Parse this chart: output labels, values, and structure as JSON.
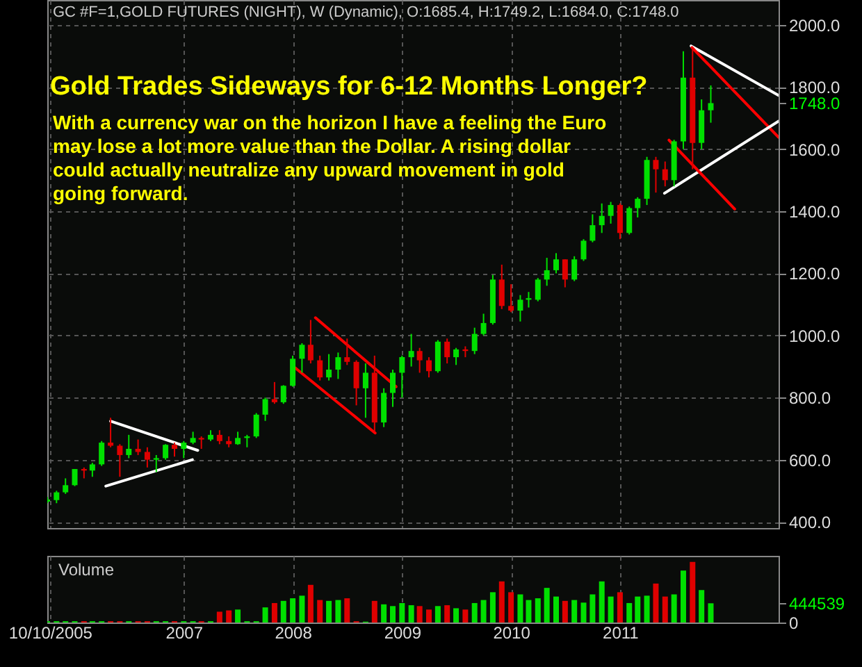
{
  "chart_data": [
    {
      "type": "candlestick",
      "title": "Gold Trades Sideways for 6-12 Months Longer?",
      "subtitle": "With a currency war on the horizon I have a feeling the Euro may lose a lot more value than the Dollar. A rising dollar could actually neutralize any upward movement in gold going forward.",
      "annotations": [
        "GC #F=1,GOLD FUTURES (NIGHT), W (Dynamic), O:1685.4, H:1749.2, L:1684.0, C:1748.0"
      ],
      "x": [
        "2005-10",
        "2005-11",
        "2005-12",
        "2006-01",
        "2006-02",
        "2006-03",
        "2006-04",
        "2006-05",
        "2006-06",
        "2006-07",
        "2006-08",
        "2006-09",
        "2006-10",
        "2006-11",
        "2006-12",
        "2007-01",
        "2007-02",
        "2007-03",
        "2007-04",
        "2007-05",
        "2007-06",
        "2007-07",
        "2007-08",
        "2007-09",
        "2007-10",
        "2007-11",
        "2007-12",
        "2008-01",
        "2008-02",
        "2008-03",
        "2008-04",
        "2008-05",
        "2008-06",
        "2008-07",
        "2008-08",
        "2008-09",
        "2008-10",
        "2008-11",
        "2008-12",
        "2009-01",
        "2009-02",
        "2009-03",
        "2009-04",
        "2009-05",
        "2009-06",
        "2009-07",
        "2009-08",
        "2009-09",
        "2009-10",
        "2009-11",
        "2009-12",
        "2010-01",
        "2010-02",
        "2010-03",
        "2010-04",
        "2010-05",
        "2010-06",
        "2010-07",
        "2010-08",
        "2010-09",
        "2010-10",
        "2010-11",
        "2010-12",
        "2011-01",
        "2011-02",
        "2011-03",
        "2011-04",
        "2011-05",
        "2011-06",
        "2011-07",
        "2011-08",
        "2011-09",
        "2011-10",
        "2011-11"
      ],
      "ohlc": [
        [
          465,
          480,
          460,
          472
        ],
        [
          470,
          500,
          460,
          495
        ],
        [
          495,
          540,
          490,
          518
        ],
        [
          518,
          570,
          515,
          570
        ],
        [
          570,
          575,
          540,
          565
        ],
        [
          565,
          590,
          545,
          585
        ],
        [
          585,
          660,
          580,
          655
        ],
        [
          655,
          735,
          640,
          645
        ],
        [
          645,
          650,
          545,
          615
        ],
        [
          615,
          680,
          605,
          635
        ],
        [
          635,
          665,
          615,
          625
        ],
        [
          625,
          640,
          575,
          600
        ],
        [
          600,
          615,
          560,
          605
        ],
        [
          605,
          650,
          600,
          648
        ],
        [
          648,
          655,
          610,
          635
        ],
        [
          635,
          660,
          605,
          655
        ],
        [
          655,
          690,
          650,
          670
        ],
        [
          670,
          675,
          635,
          665
        ],
        [
          665,
          695,
          660,
          680
        ],
        [
          680,
          695,
          650,
          660
        ],
        [
          660,
          675,
          640,
          650
        ],
        [
          650,
          690,
          648,
          670
        ],
        [
          670,
          680,
          640,
          675
        ],
        [
          675,
          750,
          670,
          745
        ],
        [
          745,
          800,
          725,
          795
        ],
        [
          795,
          850,
          780,
          785
        ],
        [
          785,
          840,
          780,
          838
        ],
        [
          838,
          935,
          835,
          925
        ],
        [
          925,
          975,
          880,
          970
        ],
        [
          970,
          1050,
          910,
          920
        ],
        [
          920,
          935,
          855,
          865
        ],
        [
          865,
          940,
          855,
          890
        ],
        [
          890,
          945,
          860,
          930
        ],
        [
          930,
          990,
          905,
          915
        ],
        [
          915,
          920,
          775,
          830
        ],
        [
          830,
          910,
          735,
          880
        ],
        [
          880,
          935,
          690,
          720
        ],
        [
          720,
          830,
          705,
          815
        ],
        [
          815,
          890,
          770,
          880
        ],
        [
          880,
          935,
          800,
          930
        ],
        [
          930,
          1005,
          900,
          950
        ],
        [
          950,
          960,
          880,
          920
        ],
        [
          920,
          930,
          865,
          885
        ],
        [
          885,
          985,
          880,
          980
        ],
        [
          980,
          990,
          910,
          930
        ],
        [
          930,
          960,
          905,
          955
        ],
        [
          955,
          965,
          930,
          950
        ],
        [
          950,
          1025,
          940,
          1005
        ],
        [
          1005,
          1070,
          1000,
          1040
        ],
        [
          1040,
          1195,
          1035,
          1180
        ],
        [
          1180,
          1228,
          1085,
          1095
        ],
        [
          1095,
          1165,
          1075,
          1080
        ],
        [
          1080,
          1130,
          1045,
          1115
        ],
        [
          1115,
          1140,
          1090,
          1120
        ],
        [
          1115,
          1185,
          1110,
          1180
        ],
        [
          1180,
          1250,
          1160,
          1210
        ],
        [
          1210,
          1265,
          1200,
          1245
        ],
        [
          1245,
          1245,
          1155,
          1180
        ],
        [
          1180,
          1255,
          1175,
          1245
        ],
        [
          1245,
          1310,
          1240,
          1305
        ],
        [
          1305,
          1390,
          1300,
          1355
        ],
        [
          1355,
          1425,
          1330,
          1385
        ],
        [
          1385,
          1430,
          1360,
          1420
        ],
        [
          1420,
          1425,
          1310,
          1330
        ],
        [
          1330,
          1415,
          1325,
          1410
        ],
        [
          1410,
          1445,
          1380,
          1440
        ],
        [
          1440,
          1575,
          1420,
          1565
        ],
        [
          1565,
          1575,
          1460,
          1535
        ],
        [
          1535,
          1560,
          1480,
          1500
        ],
        [
          1500,
          1630,
          1480,
          1625
        ],
        [
          1625,
          1915,
          1600,
          1830
        ],
        [
          1830,
          1925,
          1535,
          1620
        ],
        [
          1620,
          1760,
          1600,
          1725
        ],
        [
          1725,
          1805,
          1685,
          1748
        ]
      ],
      "colors": [
        "#00e000",
        "#00e000",
        "#00e000",
        "#00e000",
        "#e00000",
        "#00e000",
        "#00e000",
        "#e00000",
        "#e00000",
        "#00e000",
        "#e00000",
        "#e00000",
        "#00e000",
        "#00e000",
        "#e00000",
        "#00e000",
        "#00e000",
        "#e00000",
        "#00e000",
        "#e00000",
        "#e00000",
        "#00e000",
        "#00e000",
        "#00e000",
        "#00e000",
        "#e00000",
        "#00e000",
        "#00e000",
        "#00e000",
        "#e00000",
        "#e00000",
        "#00e000",
        "#00e000",
        "#e00000",
        "#e00000",
        "#00e000",
        "#e00000",
        "#00e000",
        "#00e000",
        "#00e000",
        "#00e000",
        "#e00000",
        "#e00000",
        "#00e000",
        "#e00000",
        "#00e000",
        "#e00000",
        "#00e000",
        "#00e000",
        "#00e000",
        "#e00000",
        "#e00000",
        "#00e000",
        "#00e000",
        "#00e000",
        "#00e000",
        "#00e000",
        "#e00000",
        "#00e000",
        "#00e000",
        "#00e000",
        "#00e000",
        "#00e000",
        "#e00000",
        "#00e000",
        "#00e000",
        "#00e000",
        "#e00000",
        "#e00000",
        "#00e000",
        "#00e000",
        "#e00000",
        "#00e000",
        "#00e000"
      ],
      "series": [
        {
          "type": "line",
          "color": "#ffffff",
          "x": [
            "2006-05-01",
            "2007-02-17"
          ],
          "values": [
            724,
            630
          ]
        },
        {
          "type": "line",
          "color": "#ffffff",
          "x": [
            "2006-04-15",
            "2007-01-30"
          ],
          "values": [
            515,
            600
          ]
        },
        {
          "type": "line",
          "color": "#ff0000",
          "x": [
            "2008-03-17",
            "2008-12-12"
          ],
          "values": [
            1057,
            835
          ]
        },
        {
          "type": "line",
          "color": "#ff0000",
          "x": [
            "2008-01-05",
            "2008-10-03"
          ],
          "values": [
            899,
            686
          ]
        },
        {
          "type": "line",
          "color": "#ffffff",
          "x": [
            "2011-08-27",
            "2012-06-15"
          ],
          "values": [
            1932,
            1773
          ]
        },
        {
          "type": "line",
          "color": "#ff0000",
          "x": [
            "2011-08-30",
            "2012-06-15"
          ],
          "values": [
            1927,
            1638
          ]
        },
        {
          "type": "line",
          "color": "#ffffff",
          "x": [
            "2011-05-30",
            "2012-06-15"
          ],
          "values": [
            1458,
            1690
          ]
        },
        {
          "type": "line",
          "color": "#ff0000",
          "x": [
            "2011-06-14",
            "2012-01-20"
          ],
          "values": [
            1629,
            1407
          ]
        }
      ],
      "xlim": [
        "2005-10-01",
        "2012-06-15"
      ],
      "xticks": [
        {
          "value": "2005-10-10",
          "label": null
        },
        {
          "value": "2007-01-01",
          "label": null
        },
        {
          "value": "2008-01-01",
          "label": null
        },
        {
          "value": "2009-01-01",
          "label": null
        },
        {
          "value": "2010-01-01",
          "label": null
        },
        {
          "value": "2011-01-01",
          "label": null
        }
      ],
      "ylim": [
        380,
        2080
      ],
      "yticks": [
        {
          "value": 400,
          "label": "400.0"
        },
        {
          "value": 600,
          "label": "600.0"
        },
        {
          "value": 800,
          "label": "800.0"
        },
        {
          "value": 1000,
          "label": "1000.0"
        },
        {
          "value": 1200,
          "label": "1200.0"
        },
        {
          "value": 1400,
          "label": "1400.0"
        },
        {
          "value": 1600,
          "label": "1600.0"
        },
        {
          "value": 1748,
          "label": "1748.0"
        },
        {
          "value": 1800,
          "label": "1800.0"
        },
        {
          "value": 2000,
          "label": "2000.0"
        }
      ],
      "grid": true,
      "tick_labels": "y"
    },
    {
      "type": "bar",
      "title": "Volume",
      "x": [
        "2005-10",
        "2005-11",
        "2005-12",
        "2006-01",
        "2006-02",
        "2006-03",
        "2006-04",
        "2006-05",
        "2006-06",
        "2006-07",
        "2006-08",
        "2006-09",
        "2006-10",
        "2006-11",
        "2006-12",
        "2007-01",
        "2007-02",
        "2007-03",
        "2007-04",
        "2007-05",
        "2007-06",
        "2007-07",
        "2007-08",
        "2007-09",
        "2007-10",
        "2007-11",
        "2007-12",
        "2008-01",
        "2008-02",
        "2008-03",
        "2008-04",
        "2008-05",
        "2008-06",
        "2008-07",
        "2008-08",
        "2008-09",
        "2008-10",
        "2008-11",
        "2008-12",
        "2009-01",
        "2009-02",
        "2009-03",
        "2009-04",
        "2009-05",
        "2009-06",
        "2009-07",
        "2009-08",
        "2009-09",
        "2009-10",
        "2009-11",
        "2009-12",
        "2010-01",
        "2010-02",
        "2010-03",
        "2010-04",
        "2010-05",
        "2010-06",
        "2010-07",
        "2010-08",
        "2010-09",
        "2010-10",
        "2010-11",
        "2010-12",
        "2011-01",
        "2011-02",
        "2011-03",
        "2011-04",
        "2011-05",
        "2011-06",
        "2011-07",
        "2011-08",
        "2011-09",
        "2011-10",
        "2011-11"
      ],
      "values": [
        30000,
        30000,
        30000,
        30000,
        30000,
        30000,
        30000,
        30000,
        30000,
        30000,
        30000,
        30000,
        30000,
        30000,
        30000,
        30000,
        30000,
        30000,
        30000,
        250000,
        280000,
        300000,
        30000,
        30000,
        350000,
        450000,
        500000,
        560000,
        620000,
        870000,
        520000,
        500000,
        520000,
        560000,
        30000,
        20000,
        500000,
        420000,
        380000,
        450000,
        400000,
        380000,
        300000,
        380000,
        400000,
        330000,
        300000,
        450000,
        520000,
        700000,
        950000,
        700000,
        650000,
        520000,
        560000,
        800000,
        600000,
        500000,
        520000,
        460000,
        650000,
        950000,
        600000,
        700000,
        450000,
        600000,
        620000,
        900000,
        600000,
        650000,
        1200000,
        1400000,
        750000,
        444539
      ],
      "colors": [
        "#00e000",
        "#00e000",
        "#00e000",
        "#00e000",
        "#e00000",
        "#00e000",
        "#00e000",
        "#e00000",
        "#e00000",
        "#00e000",
        "#e00000",
        "#e00000",
        "#00e000",
        "#00e000",
        "#e00000",
        "#00e000",
        "#00e000",
        "#e00000",
        "#00e000",
        "#e00000",
        "#e00000",
        "#00e000",
        "#00e000",
        "#00e000",
        "#00e000",
        "#e00000",
        "#00e000",
        "#00e000",
        "#00e000",
        "#e00000",
        "#e00000",
        "#00e000",
        "#00e000",
        "#e00000",
        "#e00000",
        "#00e000",
        "#e00000",
        "#00e000",
        "#00e000",
        "#00e000",
        "#00e000",
        "#e00000",
        "#e00000",
        "#00e000",
        "#e00000",
        "#00e000",
        "#e00000",
        "#00e000",
        "#00e000",
        "#00e000",
        "#e00000",
        "#e00000",
        "#00e000",
        "#00e000",
        "#00e000",
        "#00e000",
        "#00e000",
        "#e00000",
        "#00e000",
        "#00e000",
        "#00e000",
        "#00e000",
        "#00e000",
        "#e00000",
        "#00e000",
        "#00e000",
        "#00e000",
        "#e00000",
        "#e00000",
        "#00e000",
        "#00e000",
        "#e00000",
        "#00e000",
        "#00e000"
      ],
      "xlim": [
        "2005-10-01",
        "2012-06-15"
      ],
      "xticks": [
        {
          "value": "2005-10-10",
          "label": "10/10/2005"
        },
        {
          "value": "2007-01-01",
          "label": "2007"
        },
        {
          "value": "2008-01-01",
          "label": "2008"
        },
        {
          "value": "2009-01-01",
          "label": "2009"
        },
        {
          "value": "2010-01-01",
          "label": "2010"
        },
        {
          "value": "2011-01-01",
          "label": "2011"
        }
      ],
      "ylim": [
        0,
        1540000
      ],
      "yticks": [
        0,
        {
          "value": 444539,
          "label": "444539"
        }
      ],
      "grid": "x"
    }
  ]
}
